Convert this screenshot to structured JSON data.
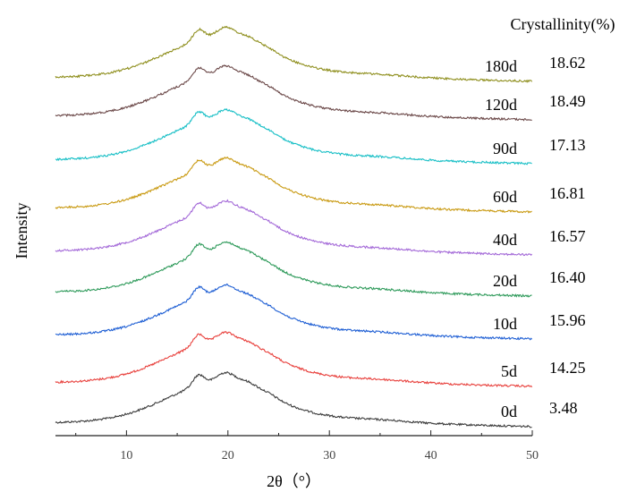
{
  "chart_data": {
    "type": "line",
    "xlabel": "2θ（°）",
    "ylabel": "Intensity",
    "xlim": [
      3,
      50
    ],
    "xticks": [
      10,
      20,
      30,
      40,
      50
    ],
    "value_column_header": "Crystallinity(%)",
    "legend": "none",
    "grid": false,
    "series": [
      {
        "name": "0d",
        "crystallinity": "3.48",
        "color": "#3c3c3c"
      },
      {
        "name": "5d",
        "crystallinity": "14.25",
        "color": "#e8403c"
      },
      {
        "name": "10d",
        "crystallinity": "15.96",
        "color": "#1f5fd4"
      },
      {
        "name": "20d",
        "crystallinity": "16.40",
        "color": "#2e9a5a"
      },
      {
        "name": "40d",
        "crystallinity": "16.57",
        "color": "#a46ad8"
      },
      {
        "name": "60d",
        "crystallinity": "16.81",
        "color": "#c99a12"
      },
      {
        "name": "90d",
        "crystallinity": "17.13",
        "color": "#18bfc6"
      },
      {
        "name": "120d",
        "crystallinity": "18.49",
        "color": "#6b4848"
      },
      {
        "name": "180d",
        "crystallinity": "18.62",
        "color": "#8f8f1e"
      }
    ]
  }
}
